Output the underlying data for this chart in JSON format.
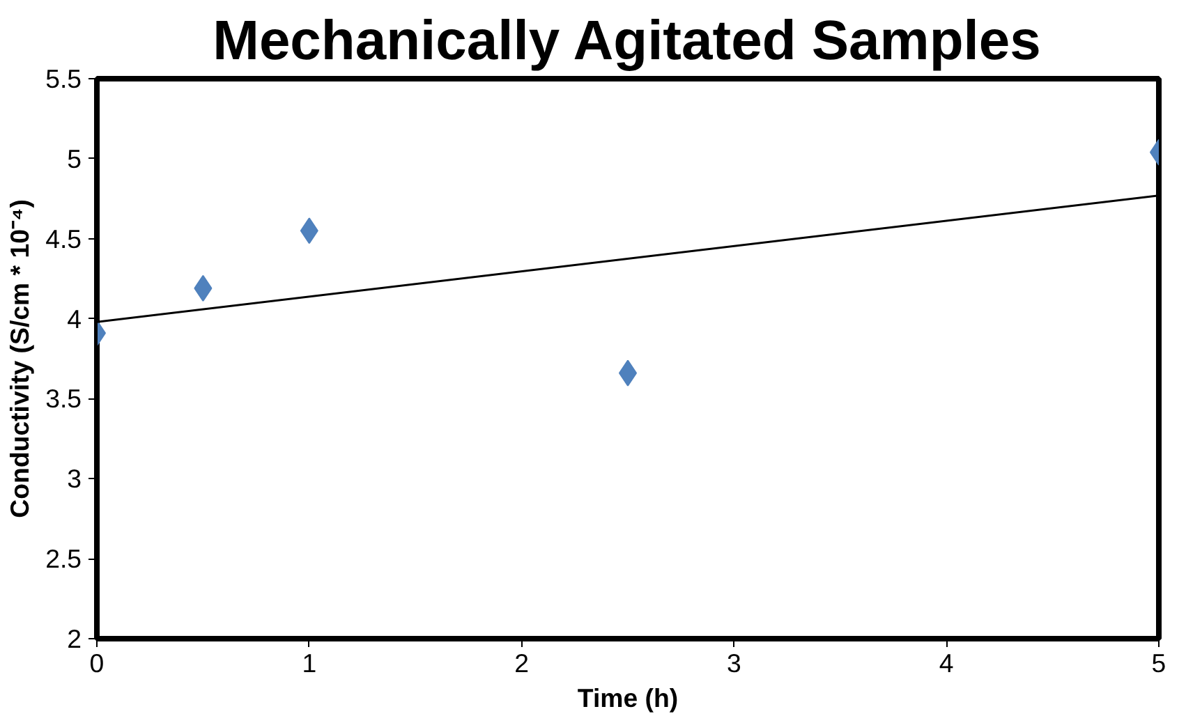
{
  "chart_data": {
    "type": "scatter",
    "title": "Mechanically Agitated Samples",
    "xlabel": "Time (h)",
    "ylabel": "Conductivity (S/cm * 10⁻⁴)",
    "x": [
      0,
      0.5,
      1,
      2.5,
      5
    ],
    "series": [
      {
        "color": "#4f81bd",
        "values": [
          3.91,
          4.19,
          4.55,
          3.66,
          5.04
        ],
        "marker": "diamond"
      },
      {
        "type": "line",
        "color": "#000000",
        "x": [
          0,
          5
        ],
        "values": [
          3.98,
          4.77
        ],
        "marker": "none",
        "line_style": "solid"
      }
    ],
    "xlim": [
      0,
      5
    ],
    "xticks": [
      0,
      1,
      2,
      3,
      4,
      5
    ],
    "ylim": [
      2,
      5.5
    ],
    "yticks": [
      2,
      2.5,
      3,
      3.5,
      4,
      4.5,
      5,
      5.5
    ],
    "grid": false
  }
}
